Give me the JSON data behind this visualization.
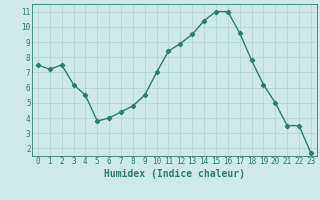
{
  "x": [
    0,
    1,
    2,
    3,
    4,
    5,
    6,
    7,
    8,
    9,
    10,
    11,
    12,
    13,
    14,
    15,
    16,
    17,
    18,
    19,
    20,
    21,
    22,
    23
  ],
  "y": [
    7.5,
    7.2,
    7.5,
    6.2,
    5.5,
    3.8,
    4.0,
    4.4,
    4.8,
    5.5,
    7.0,
    8.4,
    8.9,
    9.5,
    10.4,
    11.0,
    11.0,
    9.6,
    7.8,
    6.2,
    5.0,
    3.5,
    3.5,
    1.7
  ],
  "line_color": "#2d7d6e",
  "marker": "D",
  "marker_size": 2.2,
  "bg_color": "#ceeae7",
  "grid_color": "#b0d4d0",
  "xlabel": "Humidex (Indice chaleur)",
  "ylim": [
    1.5,
    11.5
  ],
  "xlim": [
    -0.5,
    23.5
  ],
  "yticks": [
    2,
    3,
    4,
    5,
    6,
    7,
    8,
    9,
    10,
    11
  ],
  "xticks": [
    0,
    1,
    2,
    3,
    4,
    5,
    6,
    7,
    8,
    9,
    10,
    11,
    12,
    13,
    14,
    15,
    16,
    17,
    18,
    19,
    20,
    21,
    22,
    23
  ],
  "tick_color": "#2d7d6e",
  "label_color": "#2d7d6e",
  "xlabel_fontsize": 7,
  "tick_fontsize": 5.5,
  "linewidth": 1.0
}
